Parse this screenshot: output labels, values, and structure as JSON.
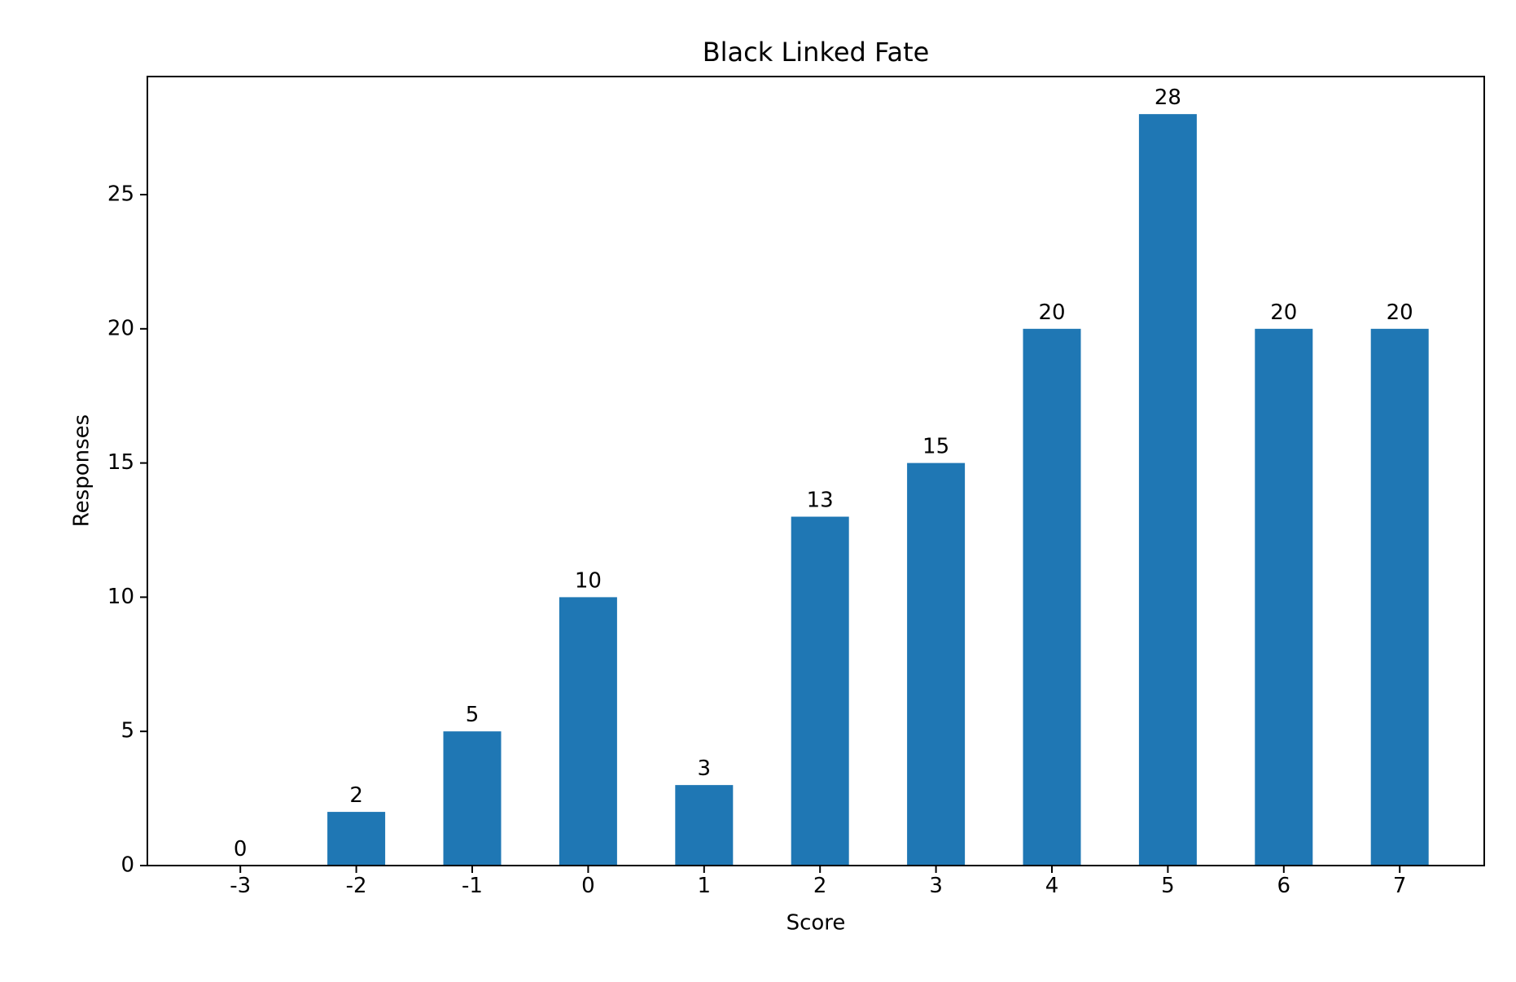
{
  "chart_data": {
    "type": "bar",
    "title": "Black Linked Fate",
    "xlabel": "Score",
    "ylabel": "Responses",
    "categories": [
      "-3",
      "-2",
      "-1",
      "0",
      "1",
      "2",
      "3",
      "4",
      "5",
      "6",
      "7"
    ],
    "values": [
      0,
      2,
      5,
      10,
      3,
      13,
      15,
      20,
      28,
      20,
      20
    ],
    "data_labels": [
      "0",
      "2",
      "5",
      "10",
      "3",
      "13",
      "15",
      "20",
      "28",
      "20",
      "20"
    ],
    "y_ticks": [
      0,
      5,
      10,
      15,
      20,
      25
    ],
    "ylim": [
      0,
      29.4
    ],
    "grid": false,
    "bar_color": "#1f77b4"
  }
}
